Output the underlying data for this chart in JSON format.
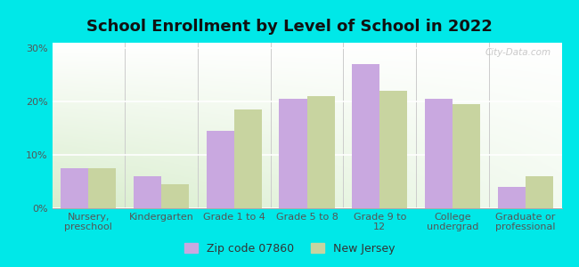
{
  "title": "School Enrollment by Level of School in 2022",
  "categories": [
    "Nursery,\npreschool",
    "Kindergarten",
    "Grade 1 to 4",
    "Grade 5 to 8",
    "Grade 9 to\n12",
    "College\nundergrad",
    "Graduate or\nprofessional"
  ],
  "zip_values": [
    7.5,
    6.0,
    14.5,
    20.5,
    27.0,
    20.5,
    4.0
  ],
  "nj_values": [
    7.5,
    4.5,
    18.5,
    21.0,
    22.0,
    19.5,
    6.0
  ],
  "zip_color": "#c9a8e0",
  "nj_color": "#c8d4a0",
  "background_outer": "#00e8e8",
  "background_top_right": "#ffffff",
  "background_bottom_left": "#d8edcc",
  "yticks": [
    0,
    10,
    20,
    30
  ],
  "ylim": [
    0,
    31
  ],
  "legend_zip": "Zip code 07860",
  "legend_nj": "New Jersey",
  "watermark": "City-Data.com",
  "bar_width": 0.38,
  "title_fontsize": 13,
  "tick_fontsize": 8
}
